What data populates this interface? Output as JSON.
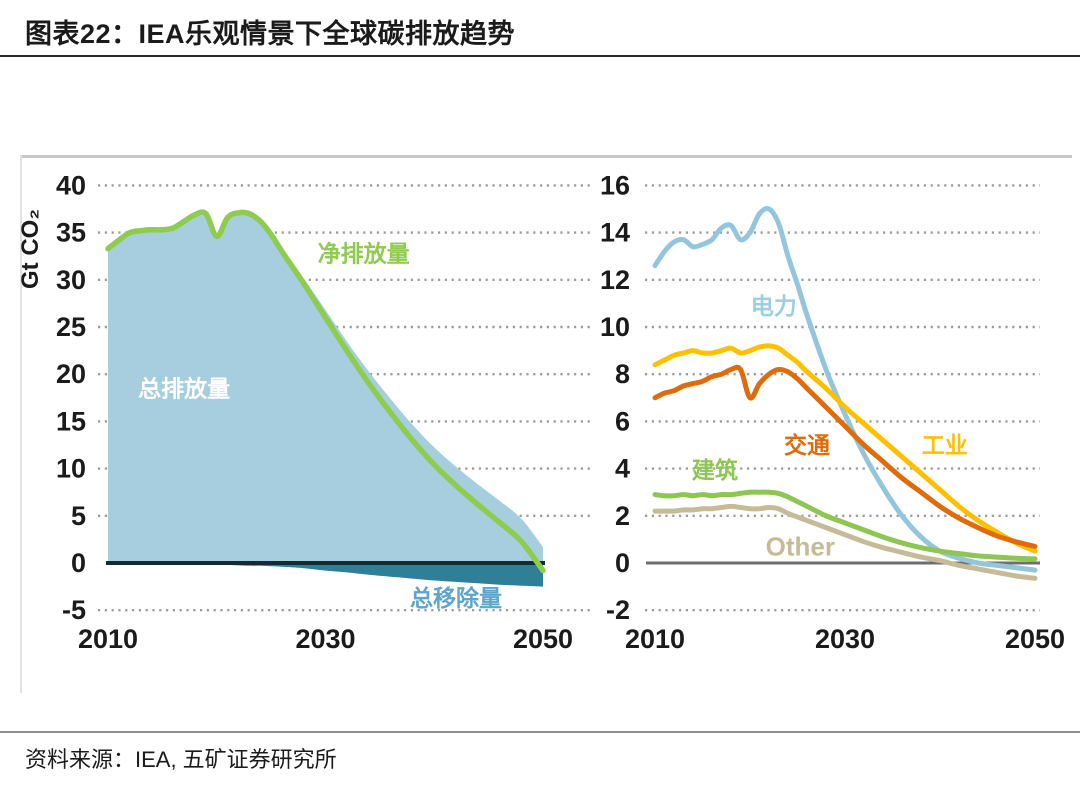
{
  "page": {
    "title": "图表22：IEA乐观情景下全球碳排放趋势",
    "source": "资料来源：IEA, 五矿证券研究所"
  },
  "colors": {
    "total_emissions_area": "#A6CEDE",
    "removals_area": "#2F7F96",
    "net_emissions_line": "#8FCB4E",
    "power_line": "#93C6DD",
    "industry_line": "#FFC000",
    "transport_line": "#DF6C0B",
    "buildings_line": "#8DC653",
    "other_line": "#C5BC97",
    "grid_dotted": "#9C9C9C",
    "zero_line_left": "#132B33",
    "zero_line_right": "#6E6E6E",
    "text": "#1b1b1b"
  },
  "chart_data": [
    {
      "type": "area",
      "title": "",
      "ylabel": "Gt CO₂",
      "xlabel": "",
      "ylim": [
        -5,
        40
      ],
      "xlim": [
        2010,
        2050
      ],
      "yticks": [
        40,
        35,
        30,
        25,
        20,
        15,
        10,
        5,
        0,
        -5
      ],
      "xticks": [
        2010,
        2030,
        2050
      ],
      "grid": "horizontal-dotted",
      "legend_position": "inline-annotations",
      "x": [
        2010,
        2011,
        2012,
        2013,
        2014,
        2015,
        2016,
        2017,
        2018,
        2019,
        2020,
        2021,
        2022,
        2023,
        2024,
        2025,
        2026,
        2028,
        2030,
        2032,
        2034,
        2036,
        2038,
        2040,
        2042,
        2044,
        2046,
        2048,
        2050
      ],
      "series": [
        {
          "key": "total-emissions",
          "name": "总排放量",
          "draw": "area",
          "color": "#A6CEDE",
          "values": [
            33.3,
            34.2,
            35.0,
            35.2,
            35.35,
            35.35,
            35.6,
            36.3,
            37.05,
            37.15,
            34.8,
            36.8,
            37.35,
            37.3,
            36.5,
            35.15,
            33.4,
            30.15,
            26.8,
            23.4,
            20.25,
            17.35,
            14.65,
            12.25,
            10.2,
            8.35,
            6.6,
            4.7,
            1.7
          ]
        },
        {
          "key": "removals",
          "name": "总移除量",
          "draw": "area",
          "color": "#2F7F96",
          "values": [
            0,
            0,
            0,
            0,
            -0.05,
            -0.05,
            -0.1,
            -0.1,
            -0.15,
            -0.15,
            -0.2,
            -0.2,
            -0.25,
            -0.3,
            -0.3,
            -0.35,
            -0.4,
            -0.55,
            -0.8,
            -1.0,
            -1.25,
            -1.45,
            -1.65,
            -1.85,
            -2.0,
            -2.15,
            -2.3,
            -2.4,
            -2.5
          ]
        },
        {
          "key": "net-emissions",
          "name": "净排放量",
          "draw": "line",
          "color": "#8FCB4E",
          "width": 5.5,
          "values": [
            33.3,
            34.2,
            35.0,
            35.2,
            35.3,
            35.3,
            35.5,
            36.2,
            36.9,
            37.0,
            34.6,
            36.6,
            37.1,
            37.0,
            36.2,
            34.8,
            33.0,
            29.6,
            26.0,
            22.4,
            19.0,
            15.9,
            13.0,
            10.4,
            8.2,
            6.2,
            4.3,
            2.3,
            -0.8
          ]
        }
      ],
      "annotations": [
        {
          "text": "总排放量",
          "x": 2017,
          "y": 18.5,
          "color": "#FFFFFF",
          "size": 23
        },
        {
          "text": "净排放量",
          "x": 2033.5,
          "y": 32.8,
          "color": "#8FCB4E",
          "size": 23
        },
        {
          "text": "总移除量",
          "x": 2042,
          "y": -3.7,
          "color": "#5FA5CB",
          "size": 23
        }
      ]
    },
    {
      "type": "line",
      "title": "",
      "ylabel": "",
      "xlabel": "",
      "ylim": [
        -2,
        16
      ],
      "xlim": [
        2010,
        2050
      ],
      "yticks": [
        16,
        14,
        12,
        10,
        8,
        6,
        4,
        2,
        0,
        -2
      ],
      "xticks": [
        2010,
        2030,
        2050
      ],
      "grid": "horizontal-dotted",
      "legend_position": "inline-annotations",
      "x": [
        2010,
        2011,
        2012,
        2013,
        2014,
        2015,
        2016,
        2017,
        2018,
        2019,
        2020,
        2021,
        2022,
        2023,
        2024,
        2025,
        2026,
        2028,
        2030,
        2032,
        2034,
        2036,
        2038,
        2040,
        2042,
        2044,
        2046,
        2048,
        2050
      ],
      "series": [
        {
          "key": "other",
          "name": "Other",
          "draw": "line",
          "color": "#C5BC97",
          "width": 5,
          "values": [
            2.2,
            2.2,
            2.2,
            2.25,
            2.25,
            2.3,
            2.3,
            2.35,
            2.4,
            2.35,
            2.3,
            2.3,
            2.35,
            2.3,
            2.1,
            1.95,
            1.8,
            1.5,
            1.2,
            0.9,
            0.65,
            0.45,
            0.25,
            0.1,
            -0.1,
            -0.25,
            -0.4,
            -0.55,
            -0.65
          ]
        },
        {
          "key": "power",
          "name": "电力",
          "draw": "line",
          "color": "#93C6DD",
          "width": 5,
          "values": [
            12.6,
            13.2,
            13.6,
            13.7,
            13.4,
            13.5,
            13.7,
            14.2,
            14.3,
            13.7,
            14.0,
            14.8,
            15.0,
            14.4,
            13.0,
            11.8,
            10.5,
            8.2,
            6.3,
            4.6,
            3.2,
            2.0,
            1.1,
            0.5,
            0.2,
            0.0,
            -0.1,
            -0.2,
            -0.3
          ]
        },
        {
          "key": "buildings",
          "name": "建筑",
          "draw": "line",
          "color": "#8DC653",
          "width": 5,
          "values": [
            2.9,
            2.85,
            2.85,
            2.9,
            2.85,
            2.9,
            2.85,
            2.9,
            2.9,
            2.95,
            3.0,
            3.0,
            3.0,
            2.95,
            2.8,
            2.6,
            2.4,
            2.0,
            1.7,
            1.4,
            1.1,
            0.85,
            0.65,
            0.5,
            0.4,
            0.3,
            0.25,
            0.2,
            0.18
          ]
        },
        {
          "key": "industry",
          "name": "工业",
          "draw": "line",
          "color": "#FFC000",
          "width": 5,
          "values": [
            8.4,
            8.6,
            8.8,
            8.9,
            9.0,
            8.9,
            8.9,
            9.0,
            9.1,
            8.9,
            9.0,
            9.15,
            9.2,
            9.1,
            8.8,
            8.5,
            8.1,
            7.4,
            6.6,
            5.9,
            5.2,
            4.5,
            3.8,
            3.1,
            2.4,
            1.8,
            1.3,
            0.85,
            0.5
          ]
        },
        {
          "key": "transport",
          "name": "交通",
          "draw": "line",
          "color": "#DF6C0B",
          "width": 5,
          "values": [
            7.0,
            7.2,
            7.3,
            7.5,
            7.6,
            7.7,
            7.9,
            8.0,
            8.2,
            8.2,
            7.0,
            7.6,
            8.0,
            8.2,
            8.1,
            7.8,
            7.4,
            6.6,
            5.8,
            5.0,
            4.3,
            3.6,
            3.0,
            2.4,
            1.9,
            1.5,
            1.15,
            0.9,
            0.7
          ]
        }
      ],
      "annotations": [
        {
          "text": "电力",
          "x": 2022.5,
          "y": 10.9,
          "color": "#9CCEE3",
          "size": 23
        },
        {
          "text": "交通",
          "x": 2026,
          "y": 5.0,
          "color": "#DF6C0B",
          "size": 23
        },
        {
          "text": "工业",
          "x": 2040.5,
          "y": 5.0,
          "color": "#FFC000",
          "size": 23
        },
        {
          "text": "建筑",
          "x": 2016.3,
          "y": 3.95,
          "color": "#8DC653",
          "size": 23
        },
        {
          "text": "Other",
          "x": 2025.3,
          "y": 0.65,
          "color": "#C5BC97",
          "size": 26
        }
      ]
    }
  ]
}
